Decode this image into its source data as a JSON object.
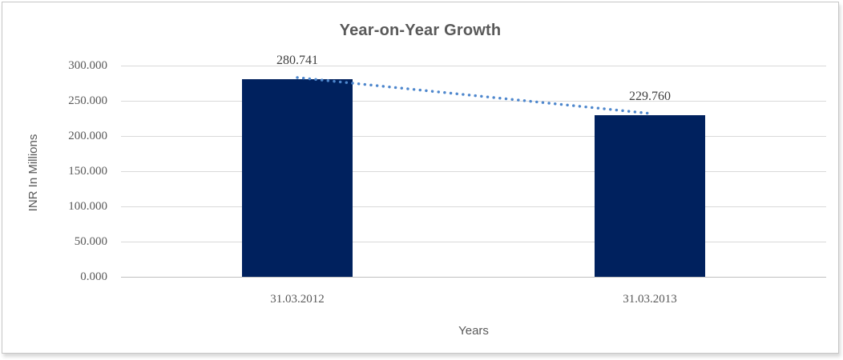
{
  "frame": {
    "background": "#ffffff",
    "border_color": "#c6c6c6"
  },
  "chart_data": {
    "type": "bar",
    "title": "Year-on-Year Growth",
    "xlabel": "Years",
    "ylabel": "INR In Millions",
    "categories": [
      "31.03.2012",
      "31.03.2013"
    ],
    "series": [
      {
        "name": "INR In Millions",
        "values": [
          280.741,
          229.76
        ]
      }
    ],
    "data_labels": [
      "280.741",
      "229.760"
    ],
    "ylim": [
      0,
      300
    ],
    "ytick_step": 50,
    "ytick_labels": [
      "300.000",
      "250.000",
      "200.000",
      "150.000",
      "100.000",
      "50.000",
      "0.000"
    ],
    "grid": true,
    "legend": "none",
    "colors": {
      "bar": "#00215e",
      "trendline": "#4e87cd",
      "gridline": "#d9d9d9",
      "axis_line": "#bfbfbf",
      "title_text": "#595959",
      "tick_text": "#595959",
      "data_label_text": "#404040"
    },
    "trendline": {
      "type": "linear",
      "style": "dotted"
    }
  }
}
